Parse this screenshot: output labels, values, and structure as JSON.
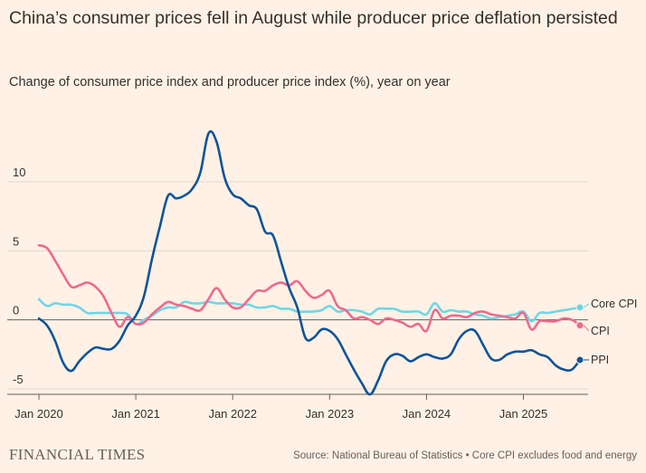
{
  "title": "China’s consumer prices fell in August while producer price deflation persisted",
  "subtitle": "Change of consumer price index and producer price index (%), year on year",
  "footer": {
    "brand": "FINANCIAL TIMES",
    "source": "Source: National Bureau of Statistics",
    "separator": "•",
    "note": "Core CPI excludes food and energy"
  },
  "colors": {
    "background": "#FFF1E5",
    "ppi": "#0F5499",
    "cpi": "#EC6A8F",
    "core_cpi": "#6FD6E6",
    "grid": "#E1D7CE",
    "zero_line": "#66605C",
    "text": "#33302E"
  },
  "chart_data": {
    "type": "line",
    "x_axis_type": "date",
    "xlim": [
      "2020-01",
      "2025-08"
    ],
    "ylim": [
      -5,
      14
    ],
    "y_ticks": [
      10,
      5,
      0,
      -5
    ],
    "y_tick_labels": [
      "10",
      "5",
      "0",
      "-5"
    ],
    "x_ticks": [
      "2020-01",
      "2021-01",
      "2022-01",
      "2023-01",
      "2024-01",
      "2025-01"
    ],
    "x_tick_labels": [
      "Jan 2020",
      "Jan 2021",
      "Jan 2022",
      "Jan 2023",
      "Jan 2024",
      "Jan 2025"
    ],
    "grid": true,
    "legend": "end-of-line labels on right",
    "series": [
      {
        "name": "Core CPI",
        "color": "#6FD6E6",
        "x": [
          "2020-01",
          "2020-02",
          "2020-03",
          "2020-04",
          "2020-05",
          "2020-06",
          "2020-07",
          "2020-08",
          "2020-09",
          "2020-10",
          "2020-11",
          "2020-12",
          "2021-01",
          "2021-02",
          "2021-03",
          "2021-04",
          "2021-05",
          "2021-06",
          "2021-07",
          "2021-08",
          "2021-09",
          "2021-10",
          "2021-11",
          "2021-12",
          "2022-01",
          "2022-02",
          "2022-03",
          "2022-04",
          "2022-05",
          "2022-06",
          "2022-07",
          "2022-08",
          "2022-09",
          "2022-10",
          "2022-11",
          "2022-12",
          "2023-01",
          "2023-02",
          "2023-03",
          "2023-04",
          "2023-05",
          "2023-06",
          "2023-07",
          "2023-08",
          "2023-09",
          "2023-10",
          "2023-11",
          "2023-12",
          "2024-01",
          "2024-02",
          "2024-03",
          "2024-04",
          "2024-05",
          "2024-06",
          "2024-07",
          "2024-08",
          "2024-09",
          "2024-10",
          "2024-11",
          "2024-12",
          "2025-01",
          "2025-02",
          "2025-03",
          "2025-04",
          "2025-05",
          "2025-06",
          "2025-07",
          "2025-08"
        ],
        "values": [
          1.5,
          1.0,
          1.2,
          1.1,
          1.1,
          0.9,
          0.5,
          0.5,
          0.5,
          0.5,
          0.5,
          0.4,
          -0.3,
          0.0,
          0.3,
          0.7,
          0.9,
          0.9,
          1.3,
          1.2,
          1.2,
          1.3,
          1.2,
          1.2,
          1.2,
          1.1,
          1.1,
          0.9,
          0.9,
          1.0,
          0.8,
          0.8,
          0.6,
          0.6,
          0.6,
          0.7,
          1.0,
          0.6,
          0.7,
          0.7,
          0.6,
          0.4,
          0.8,
          0.8,
          0.8,
          0.6,
          0.6,
          0.6,
          0.4,
          1.2,
          0.6,
          0.7,
          0.6,
          0.6,
          0.4,
          0.3,
          0.1,
          0.2,
          0.3,
          0.4,
          0.6,
          -0.1,
          0.5,
          0.5,
          0.6,
          0.7,
          0.8,
          0.9
        ]
      },
      {
        "name": "CPI",
        "color": "#EC6A8F",
        "x": [
          "2020-01",
          "2020-02",
          "2020-03",
          "2020-04",
          "2020-05",
          "2020-06",
          "2020-07",
          "2020-08",
          "2020-09",
          "2020-10",
          "2020-11",
          "2020-12",
          "2021-01",
          "2021-02",
          "2021-03",
          "2021-04",
          "2021-05",
          "2021-06",
          "2021-07",
          "2021-08",
          "2021-09",
          "2021-10",
          "2021-11",
          "2021-12",
          "2022-01",
          "2022-02",
          "2022-03",
          "2022-04",
          "2022-05",
          "2022-06",
          "2022-07",
          "2022-08",
          "2022-09",
          "2022-10",
          "2022-11",
          "2022-12",
          "2023-01",
          "2023-02",
          "2023-03",
          "2023-04",
          "2023-05",
          "2023-06",
          "2023-07",
          "2023-08",
          "2023-09",
          "2023-10",
          "2023-11",
          "2023-12",
          "2024-01",
          "2024-02",
          "2024-03",
          "2024-04",
          "2024-05",
          "2024-06",
          "2024-07",
          "2024-08",
          "2024-09",
          "2024-10",
          "2024-11",
          "2024-12",
          "2025-01",
          "2025-02",
          "2025-03",
          "2025-04",
          "2025-05",
          "2025-06",
          "2025-07",
          "2025-08"
        ],
        "values": [
          5.4,
          5.2,
          4.3,
          3.3,
          2.4,
          2.5,
          2.7,
          2.4,
          1.7,
          0.5,
          -0.5,
          0.2,
          -0.3,
          -0.2,
          0.4,
          0.9,
          1.3,
          1.1,
          1.0,
          0.8,
          0.7,
          1.5,
          2.3,
          1.5,
          0.9,
          0.9,
          1.5,
          2.1,
          2.1,
          2.5,
          2.7,
          2.5,
          2.8,
          2.1,
          1.6,
          1.8,
          2.1,
          1.0,
          0.7,
          0.1,
          0.2,
          0.0,
          -0.3,
          0.1,
          0.0,
          -0.2,
          -0.5,
          -0.3,
          -0.8,
          0.7,
          0.1,
          0.3,
          0.3,
          0.2,
          0.5,
          0.6,
          0.4,
          0.3,
          0.2,
          0.1,
          0.5,
          -0.7,
          -0.1,
          -0.1,
          -0.1,
          0.1,
          0.0,
          -0.4
        ]
      },
      {
        "name": "PPI",
        "color": "#0F5499",
        "x": [
          "2020-01",
          "2020-02",
          "2020-03",
          "2020-04",
          "2020-05",
          "2020-06",
          "2020-07",
          "2020-08",
          "2020-09",
          "2020-10",
          "2020-11",
          "2020-12",
          "2021-01",
          "2021-02",
          "2021-03",
          "2021-04",
          "2021-05",
          "2021-06",
          "2021-07",
          "2021-08",
          "2021-09",
          "2021-10",
          "2021-11",
          "2021-12",
          "2022-01",
          "2022-02",
          "2022-03",
          "2022-04",
          "2022-05",
          "2022-06",
          "2022-07",
          "2022-08",
          "2022-09",
          "2022-10",
          "2022-11",
          "2022-12",
          "2023-01",
          "2023-02",
          "2023-03",
          "2023-04",
          "2023-05",
          "2023-06",
          "2023-07",
          "2023-08",
          "2023-09",
          "2023-10",
          "2023-11",
          "2023-12",
          "2024-01",
          "2024-02",
          "2024-03",
          "2024-04",
          "2024-05",
          "2024-06",
          "2024-07",
          "2024-08",
          "2024-09",
          "2024-10",
          "2024-11",
          "2024-12",
          "2025-01",
          "2025-02",
          "2025-03",
          "2025-04",
          "2025-05",
          "2025-06",
          "2025-07",
          "2025-08"
        ],
        "values": [
          0.1,
          -0.4,
          -1.5,
          -3.1,
          -3.7,
          -3.0,
          -2.4,
          -2.0,
          -2.1,
          -2.1,
          -1.5,
          -0.4,
          0.3,
          1.7,
          4.4,
          6.8,
          9.0,
          8.8,
          9.0,
          9.5,
          10.7,
          13.5,
          12.9,
          10.3,
          9.1,
          8.8,
          8.3,
          8.0,
          6.4,
          6.1,
          4.2,
          2.3,
          0.9,
          -1.3,
          -1.3,
          -0.7,
          -0.8,
          -1.4,
          -2.5,
          -3.6,
          -4.6,
          -5.4,
          -4.4,
          -3.0,
          -2.5,
          -2.6,
          -3.0,
          -2.7,
          -2.5,
          -2.7,
          -2.8,
          -2.5,
          -1.4,
          -0.8,
          -0.8,
          -1.8,
          -2.8,
          -2.9,
          -2.5,
          -2.3,
          -2.3,
          -2.2,
          -2.5,
          -2.7,
          -3.3,
          -3.6,
          -3.6,
          -2.9
        ]
      }
    ]
  }
}
